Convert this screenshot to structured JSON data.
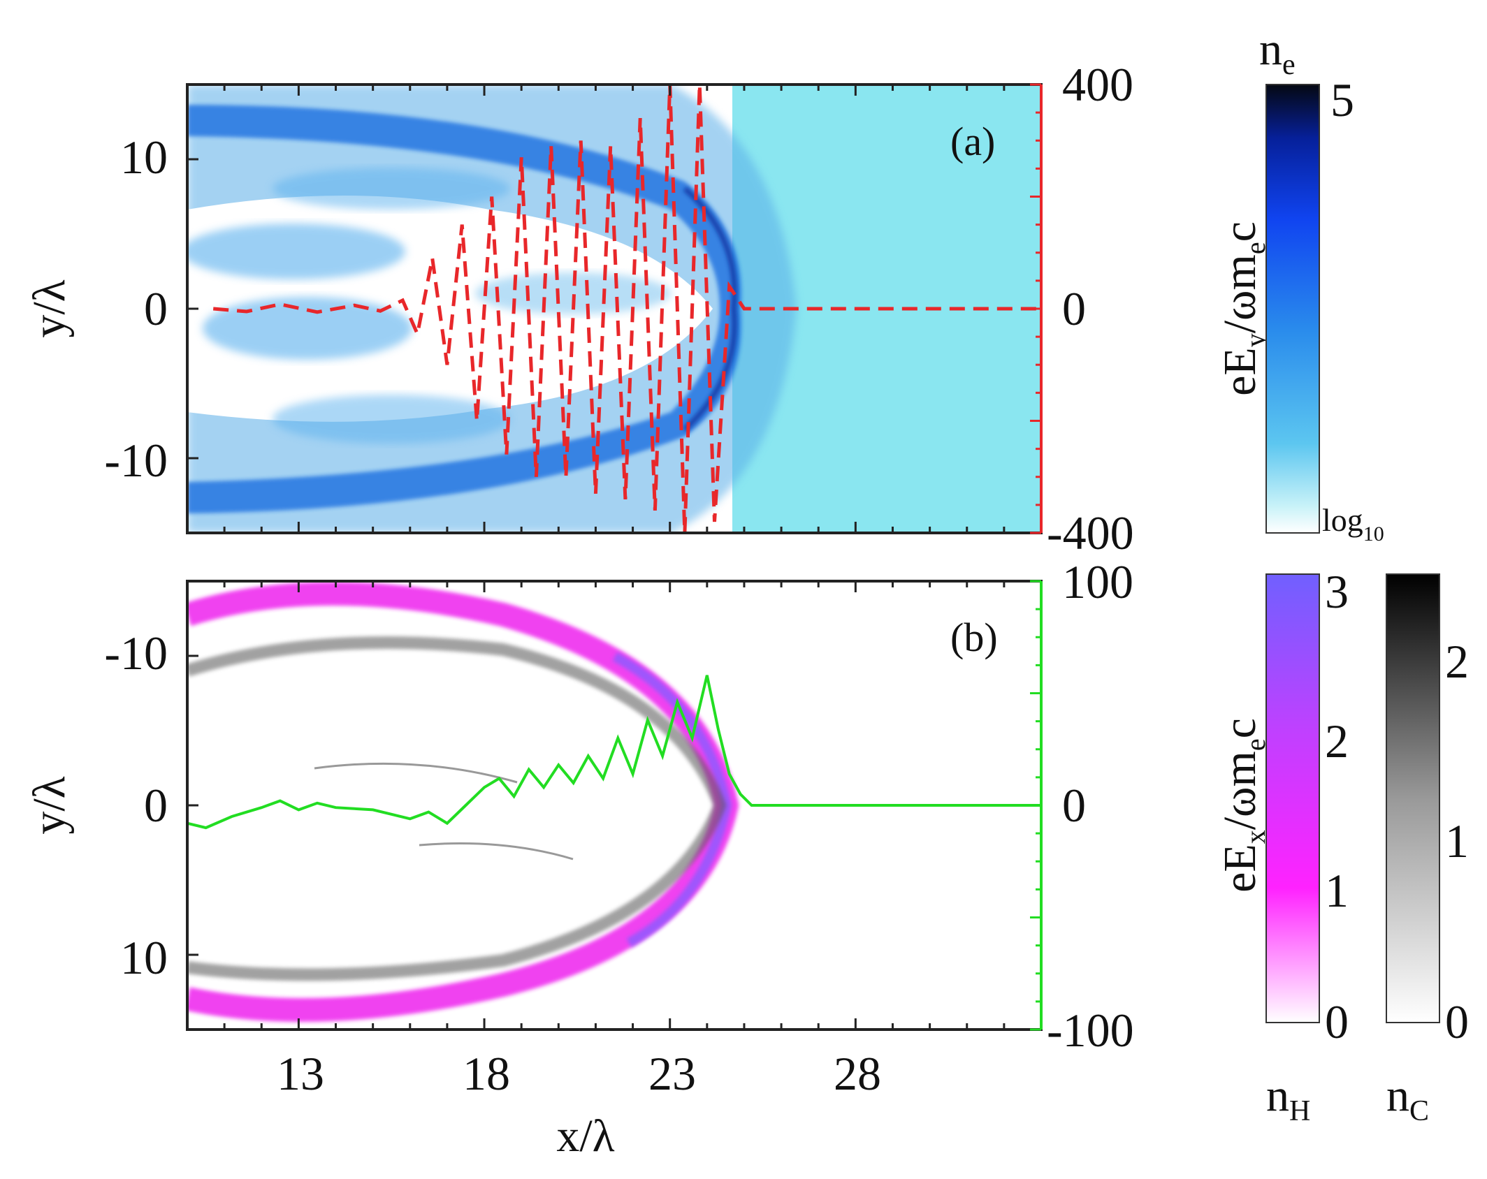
{
  "colors": {
    "frame": "#222222",
    "ey_line": "#e8272a",
    "ex_line": "#22dd22",
    "bg_a": "#8ae6f0",
    "electron": "#1f7be0",
    "electron_dark": "#0c3fb0",
    "hydrogen": "#ee22ee",
    "hydrogen_hi": "#8a5cff",
    "carbon": "#555555"
  },
  "chart_data": [
    {
      "id": "a",
      "type": "heatmap",
      "panel_label": "(a)",
      "xlabel": "",
      "ylabel": "y/λ",
      "xlim": [
        10,
        33
      ],
      "ylim": [
        -15,
        15
      ],
      "y_ticks": [
        "10",
        "0",
        "-10"
      ],
      "y_tick_values": [
        10,
        0,
        -10
      ],
      "right_axis": {
        "label_main": "eE",
        "label_sub": "y",
        "label_rest": "/ωm",
        "label_sub2": "e",
        "label_end": "c",
        "ticks": [
          "400",
          "0",
          "-400"
        ],
        "tick_values": [
          400,
          0,
          -400
        ],
        "lim": [
          -400,
          400
        ]
      },
      "colorbar": {
        "label_main": "n",
        "label_sub": "e",
        "max": 5,
        "max_label": "5",
        "min_label_main": "log",
        "min_label_sub": "10"
      },
      "series": [
        {
          "name": "eEy/ωme c on-axis",
          "style": "dashed",
          "x": [
            10.7,
            11.6,
            12.5,
            13.5,
            14.5,
            15.2,
            15.8,
            16.2,
            16.6,
            17.0,
            17.4,
            17.8,
            18.2,
            18.6,
            19.0,
            19.4,
            19.8,
            20.2,
            20.6,
            21.0,
            21.4,
            21.8,
            22.2,
            22.6,
            23.0,
            23.4,
            23.8,
            24.2,
            24.6,
            25.0,
            26.0,
            33.0
          ],
          "y": [
            0,
            -5,
            8,
            -6,
            6,
            -4,
            15,
            -45,
            90,
            -100,
            150,
            -200,
            200,
            -260,
            270,
            -300,
            290,
            -300,
            300,
            -330,
            290,
            -340,
            340,
            -360,
            400,
            -400,
            400,
            -380,
            40,
            0,
            0,
            0
          ]
        }
      ]
    },
    {
      "id": "b",
      "type": "heatmap",
      "panel_label": "(b)",
      "xlabel": "x/λ",
      "ylabel": "y/λ",
      "xlim": [
        10,
        33
      ],
      "ylim": [
        -15,
        15
      ],
      "x_ticks": [
        "13",
        "18",
        "23",
        "28"
      ],
      "x_tick_values": [
        13,
        18,
        23,
        28
      ],
      "y_ticks": [
        "-10",
        "0",
        "10"
      ],
      "y_tick_values": [
        -10,
        0,
        10
      ],
      "right_axis": {
        "label_main": "eE",
        "label_sub": "x",
        "label_rest": "/ωm",
        "label_sub2": "e",
        "label_end": "c",
        "ticks": [
          "100",
          "0",
          "-100"
        ],
        "tick_values": [
          100,
          0,
          -100
        ],
        "lim": [
          -100,
          100
        ]
      },
      "colorbar_h": {
        "label_main": "n",
        "label_sub": "H",
        "ticks": [
          "3",
          "2",
          "1",
          "0"
        ],
        "tick_values": [
          3,
          2,
          1,
          0
        ],
        "lim": [
          0,
          3
        ]
      },
      "colorbar_c": {
        "label_main": "n",
        "label_sub": "C",
        "ticks": [
          "2",
          "1",
          "0"
        ],
        "tick_values": [
          2,
          1,
          0
        ],
        "lim": [
          0,
          2.5
        ]
      },
      "series": [
        {
          "name": "eEx/ωme c on-axis",
          "style": "solid",
          "x": [
            10.0,
            10.5,
            11.2,
            12.0,
            12.5,
            13.0,
            13.5,
            14.0,
            15.0,
            15.5,
            16.0,
            16.5,
            17.0,
            17.5,
            18.0,
            18.4,
            18.8,
            19.2,
            19.6,
            20.0,
            20.4,
            20.8,
            21.2,
            21.6,
            22.0,
            22.4,
            22.8,
            23.2,
            23.6,
            24.0,
            24.3,
            24.6,
            24.9,
            25.2,
            26.0,
            33.0
          ],
          "y": [
            -8,
            -10,
            -5,
            -1,
            2,
            -2,
            1,
            -1,
            -2,
            -4,
            -6,
            -3,
            -8,
            0,
            8,
            12,
            4,
            16,
            8,
            18,
            10,
            22,
            12,
            30,
            14,
            38,
            22,
            46,
            30,
            58,
            34,
            14,
            5,
            0,
            0,
            0
          ]
        }
      ]
    }
  ]
}
